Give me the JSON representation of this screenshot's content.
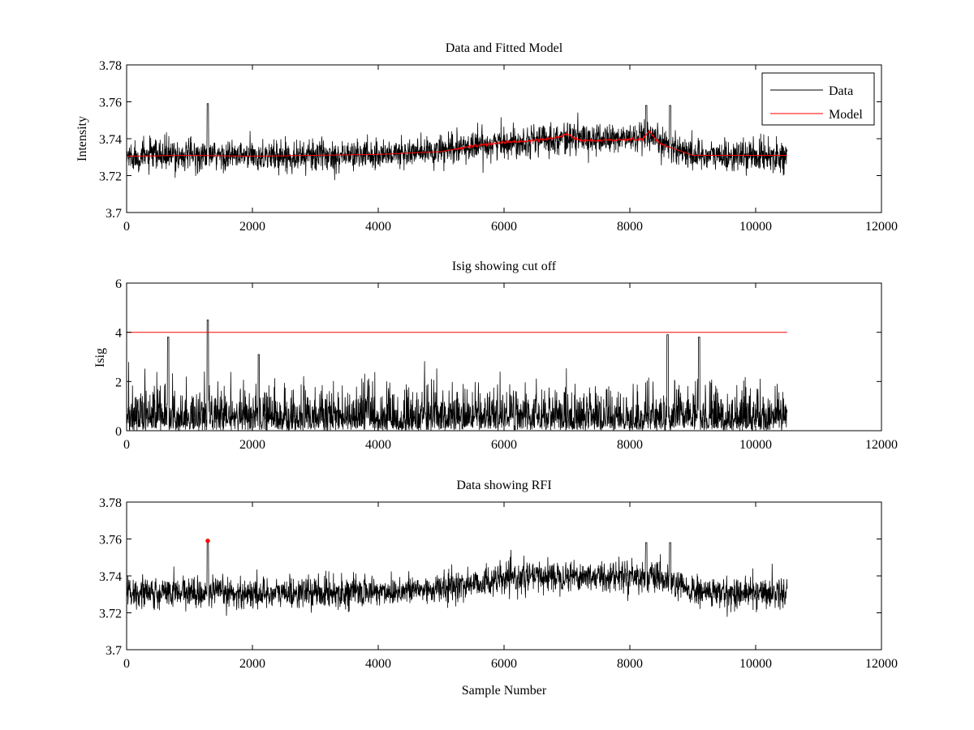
{
  "chart_data": [
    {
      "type": "line",
      "title": "Data and Fitted Model",
      "xlabel": "",
      "ylabel": "Intensity",
      "xlim": [
        0,
        12000
      ],
      "ylim": [
        3.7,
        3.78
      ],
      "xticks": [
        0,
        2000,
        4000,
        6000,
        8000,
        10000,
        12000
      ],
      "yticks": [
        3.7,
        3.72,
        3.74,
        3.76,
        3.78
      ],
      "xtick_labels": [
        "0",
        "2000",
        "4000",
        "6000",
        "8000",
        "10000",
        "12000"
      ],
      "ytick_labels": [
        "3.7",
        "3.72",
        "3.74",
        "3.76",
        "3.78"
      ],
      "legend": {
        "placement": "top-right",
        "entries": [
          "Data",
          "Model"
        ]
      },
      "series": [
        {
          "name": "Data",
          "color": "#000000",
          "kind": "noisy",
          "x_range": [
            0,
            10500
          ],
          "baseline": {
            "x": [
              0,
              1000,
              2000,
              3000,
              4000,
              5000,
              5500,
              6000,
              6500,
              7000,
              7500,
              8000,
              8500,
              9000,
              9500,
              10000,
              10500
            ],
            "y": [
              3.7305,
              3.731,
              3.7305,
              3.731,
              3.7315,
              3.733,
              3.736,
              3.738,
              3.7395,
              3.7405,
              3.7395,
              3.7405,
              3.738,
              3.7315,
              3.7305,
              3.731,
              3.731
            ]
          },
          "amplitude": 0.0075,
          "spikes": [
            {
              "x": 1290,
              "y": 3.759
            },
            {
              "x": 8260,
              "y": 3.758
            },
            {
              "x": 8640,
              "y": 3.758
            }
          ]
        },
        {
          "name": "Model",
          "color": "#ff0000",
          "x": [
            0,
            1000,
            2000,
            3000,
            4000,
            5000,
            5500,
            6000,
            6500,
            6900,
            7000,
            7200,
            7500,
            8000,
            8200,
            8300,
            8500,
            9000,
            9500,
            10000,
            10500
          ],
          "y": [
            3.7305,
            3.731,
            3.7305,
            3.731,
            3.7315,
            3.733,
            3.736,
            3.738,
            3.739,
            3.741,
            3.7425,
            3.739,
            3.739,
            3.7395,
            3.7395,
            3.744,
            3.737,
            3.731,
            3.731,
            3.731,
            3.731
          ]
        }
      ]
    },
    {
      "type": "line",
      "title": "Isig showing cut off",
      "xlabel": "",
      "ylabel": "Isig",
      "xlim": [
        0,
        12000
      ],
      "ylim": [
        0,
        6
      ],
      "xticks": [
        0,
        2000,
        4000,
        6000,
        8000,
        10000,
        12000
      ],
      "yticks": [
        0,
        2,
        4,
        6
      ],
      "xtick_labels": [
        "0",
        "2000",
        "4000",
        "6000",
        "8000",
        "10000",
        "12000"
      ],
      "ytick_labels": [
        "0",
        "2",
        "4",
        "6"
      ],
      "series": [
        {
          "name": "Isig",
          "color": "#000000",
          "kind": "abs-noise",
          "x_range": [
            0,
            10500
          ],
          "scale": 1.0,
          "spikes": [
            {
              "x": 1290,
              "y": 4.5
            },
            {
              "x": 660,
              "y": 3.8
            },
            {
              "x": 8600,
              "y": 3.9
            },
            {
              "x": 9100,
              "y": 3.8
            },
            {
              "x": 2100,
              "y": 3.1
            }
          ]
        },
        {
          "name": "Cut off",
          "color": "#ff0000",
          "x": [
            0,
            10500
          ],
          "y": [
            4,
            4
          ]
        }
      ]
    },
    {
      "type": "line",
      "title": "Data showing RFI",
      "xlabel": "Sample Number",
      "ylabel": "",
      "xlim": [
        0,
        12000
      ],
      "ylim": [
        3.7,
        3.78
      ],
      "xticks": [
        0,
        2000,
        4000,
        6000,
        8000,
        10000,
        12000
      ],
      "yticks": [
        3.7,
        3.72,
        3.74,
        3.76,
        3.78
      ],
      "xtick_labels": [
        "0",
        "2000",
        "4000",
        "6000",
        "8000",
        "10000",
        "12000"
      ],
      "ytick_labels": [
        "3.7",
        "3.72",
        "3.74",
        "3.76",
        "3.78"
      ],
      "series": [
        {
          "name": "Data",
          "color": "#000000",
          "kind": "noisy",
          "x_range": [
            0,
            10500
          ],
          "baseline": {
            "x": [
              0,
              1000,
              2000,
              3000,
              4000,
              5000,
              5500,
              6000,
              6500,
              7000,
              7500,
              8000,
              8500,
              9000,
              9500,
              10000,
              10500
            ],
            "y": [
              3.7305,
              3.731,
              3.7305,
              3.731,
              3.7315,
              3.733,
              3.736,
              3.738,
              3.7395,
              3.7405,
              3.7395,
              3.7405,
              3.738,
              3.7315,
              3.7305,
              3.731,
              3.731
            ]
          },
          "amplitude": 0.0075,
          "spikes": [
            {
              "x": 1290,
              "y": 3.759
            },
            {
              "x": 8260,
              "y": 3.758
            },
            {
              "x": 8640,
              "y": 3.758
            }
          ]
        },
        {
          "name": "RFI",
          "color": "#ff0000",
          "kind": "markers",
          "x": [
            1290
          ],
          "y": [
            3.759
          ]
        }
      ]
    }
  ]
}
